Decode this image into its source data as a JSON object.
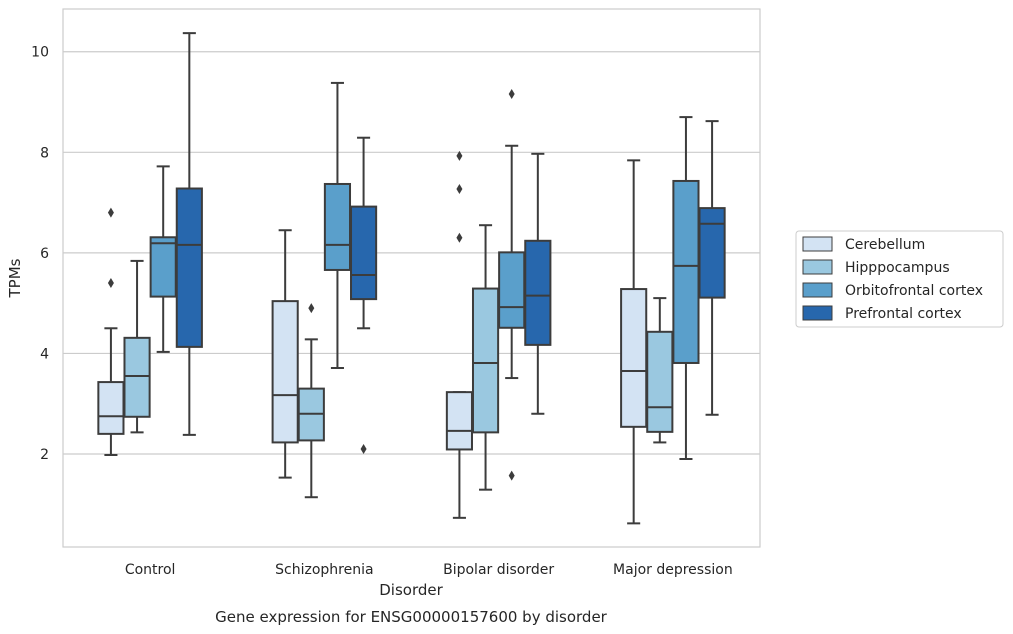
{
  "chart_data": {
    "type": "boxplot",
    "caption": "Gene expression for ENSG00000157600 by disorder",
    "xlabel": "Disorder",
    "ylabel": "TPMs",
    "ylim": [
      0.15,
      10.85
    ],
    "yticks": [
      2,
      4,
      6,
      8,
      10
    ],
    "grid": "horizontal",
    "legend_position": "right",
    "categories": [
      "Control",
      "Schizophrenia",
      "Bipolar disorder",
      "Major depression"
    ],
    "series": [
      {
        "name": "Cerebellum",
        "color": "#d3e3f3",
        "boxes": [
          {
            "whisker_low": 1.98,
            "q1": 2.4,
            "median": 2.75,
            "q3": 3.43,
            "whisker_high": 4.5,
            "outliers": [
              5.4,
              6.8
            ]
          },
          {
            "whisker_low": 1.53,
            "q1": 2.23,
            "median": 3.17,
            "q3": 5.04,
            "whisker_high": 6.45,
            "outliers": []
          },
          {
            "whisker_low": 0.73,
            "q1": 2.09,
            "median": 2.46,
            "q3": 3.23,
            "whisker_high": 3.23,
            "outliers": [
              6.3,
              7.27,
              7.93
            ]
          },
          {
            "whisker_low": 0.62,
            "q1": 2.54,
            "median": 3.65,
            "q3": 5.28,
            "whisker_high": 7.84,
            "outliers": []
          }
        ]
      },
      {
        "name": "Hipppocampus",
        "color": "#9ac8e0",
        "boxes": [
          {
            "whisker_low": 2.43,
            "q1": 2.74,
            "median": 3.55,
            "q3": 4.31,
            "whisker_high": 5.84,
            "outliers": []
          },
          {
            "whisker_low": 1.14,
            "q1": 2.27,
            "median": 2.8,
            "q3": 3.3,
            "whisker_high": 4.28,
            "outliers": [
              4.9
            ]
          },
          {
            "whisker_low": 1.29,
            "q1": 2.43,
            "median": 3.81,
            "q3": 5.29,
            "whisker_high": 6.55,
            "outliers": []
          },
          {
            "whisker_low": 2.23,
            "q1": 2.44,
            "median": 2.93,
            "q3": 4.43,
            "whisker_high": 5.1,
            "outliers": []
          }
        ]
      },
      {
        "name": "Orbitofrontal cortex",
        "color": "#5a9fcb",
        "boxes": [
          {
            "whisker_low": 4.03,
            "q1": 5.13,
            "median": 6.19,
            "q3": 6.31,
            "whisker_high": 7.72,
            "outliers": []
          },
          {
            "whisker_low": 3.71,
            "q1": 5.66,
            "median": 6.16,
            "q3": 7.37,
            "whisker_high": 9.38,
            "outliers": []
          },
          {
            "whisker_low": 3.51,
            "q1": 4.51,
            "median": 4.92,
            "q3": 6.01,
            "whisker_high": 8.13,
            "outliers": [
              1.57,
              9.16
            ]
          },
          {
            "whisker_low": 1.9,
            "q1": 3.81,
            "median": 5.74,
            "q3": 7.43,
            "whisker_high": 8.7,
            "outliers": []
          }
        ]
      },
      {
        "name": "Prefrontal cortex",
        "color": "#2767ad",
        "boxes": [
          {
            "whisker_low": 2.38,
            "q1": 4.13,
            "median": 6.16,
            "q3": 7.28,
            "whisker_high": 10.37,
            "outliers": []
          },
          {
            "whisker_low": 4.5,
            "q1": 5.08,
            "median": 5.56,
            "q3": 6.92,
            "whisker_high": 8.29,
            "outliers": [
              2.1
            ]
          },
          {
            "whisker_low": 2.8,
            "q1": 4.17,
            "median": 5.15,
            "q3": 6.24,
            "whisker_high": 7.97,
            "outliers": []
          },
          {
            "whisker_low": 2.78,
            "q1": 5.11,
            "median": 6.58,
            "q3": 6.89,
            "whisker_high": 8.62,
            "outliers": []
          }
        ]
      }
    ]
  }
}
